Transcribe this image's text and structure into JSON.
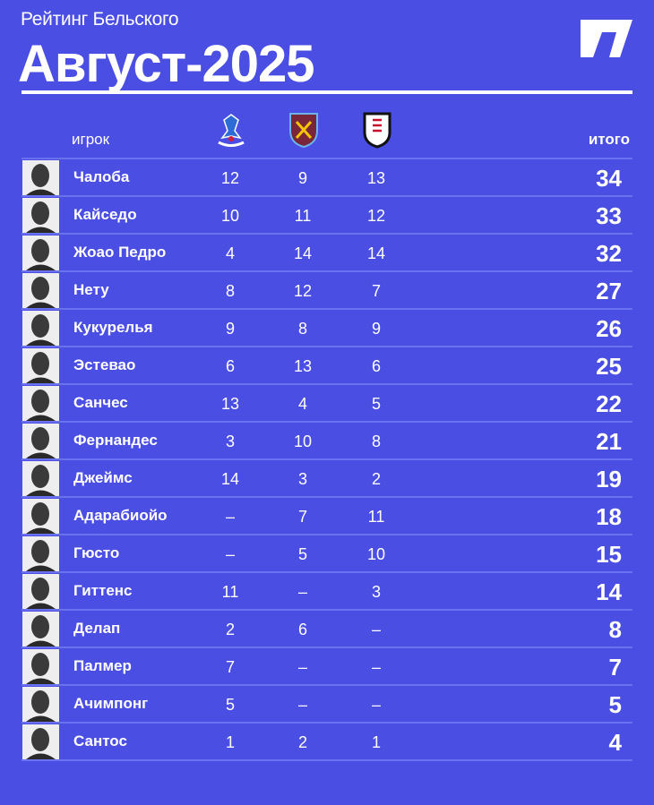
{
  "header": {
    "subtitle": "Рейтинг Бельского",
    "title": "Август-2025"
  },
  "columns": {
    "player": "игрок",
    "total": "итого",
    "clubs": [
      {
        "icon": "crystal-palace-crest-icon"
      },
      {
        "icon": "west-ham-crest-icon"
      },
      {
        "icon": "fulham-crest-icon"
      }
    ]
  },
  "colors": {
    "background": "#4a4ee2",
    "divider": "#6a72f0",
    "text": "#ffffff"
  },
  "rows": [
    {
      "name": "Чалоба",
      "v": [
        "12",
        "9",
        "13"
      ],
      "total": "34"
    },
    {
      "name": "Кайседо",
      "v": [
        "10",
        "11",
        "12"
      ],
      "total": "33"
    },
    {
      "name": "Жоао Педро",
      "v": [
        "4",
        "14",
        "14"
      ],
      "total": "32"
    },
    {
      "name": "Нету",
      "v": [
        "8",
        "12",
        "7"
      ],
      "total": "27"
    },
    {
      "name": "Кукурелья",
      "v": [
        "9",
        "8",
        "9"
      ],
      "total": "26"
    },
    {
      "name": "Эстевао",
      "v": [
        "6",
        "13",
        "6"
      ],
      "total": "25"
    },
    {
      "name": "Санчес",
      "v": [
        "13",
        "4",
        "5"
      ],
      "total": "22"
    },
    {
      "name": "Фернандес",
      "v": [
        "3",
        "10",
        "8"
      ],
      "total": "21"
    },
    {
      "name": "Джеймс",
      "v": [
        "14",
        "3",
        "2"
      ],
      "total": "19"
    },
    {
      "name": "Адарабиойо",
      "v": [
        "–",
        "7",
        "11"
      ],
      "total": "18"
    },
    {
      "name": "Гюсто",
      "v": [
        "–",
        "5",
        "10"
      ],
      "total": "15"
    },
    {
      "name": "Гиттенс",
      "v": [
        "11",
        "–",
        "3"
      ],
      "total": "14"
    },
    {
      "name": "Делап",
      "v": [
        "2",
        "6",
        "–"
      ],
      "total": "8"
    },
    {
      "name": "Палмер",
      "v": [
        "7",
        "–",
        "–"
      ],
      "total": "7"
    },
    {
      "name": "Ачимпонг",
      "v": [
        "5",
        "–",
        "–"
      ],
      "total": "5"
    },
    {
      "name": "Сантос",
      "v": [
        "1",
        "2",
        "1"
      ],
      "total": "4"
    }
  ]
}
